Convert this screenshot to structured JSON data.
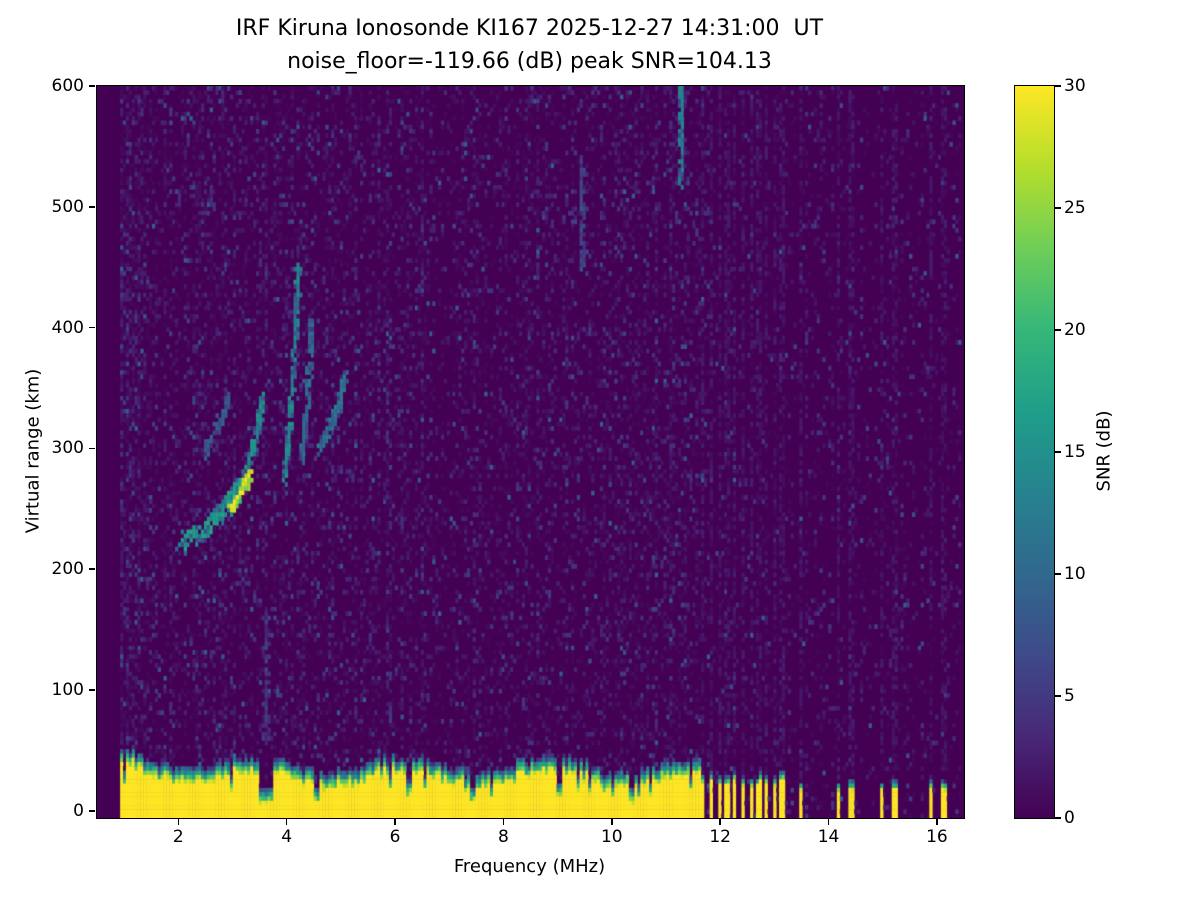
{
  "figure": {
    "station": "KI167",
    "timestamp_ut": "2025-12-27 14:31:00",
    "noise_floor_db": -119.66,
    "peak_snr_db": 104.13
  },
  "chart_data": {
    "type": "heatmap",
    "title": "IRF Kiruna Ionosonde KI167 2025-12-27 14:31:00  UT",
    "subtitle": "noise_floor=-119.66 (dB) peak SNR=104.13",
    "xlabel": "Frequency (MHz)",
    "ylabel": "Virtual range (km)",
    "colorbar_label": "SNR (dB)",
    "x_range_mhz": [
      0.5,
      16.5
    ],
    "y_range_km": [
      -6,
      600
    ],
    "value_range_db": [
      0,
      30
    ],
    "x_ticks": [
      2,
      4,
      6,
      8,
      10,
      12,
      14,
      16
    ],
    "y_ticks": [
      0,
      100,
      200,
      300,
      400,
      500,
      600
    ],
    "colorbar_ticks": [
      0,
      5,
      10,
      15,
      20,
      25,
      30
    ],
    "colormap": "viridis",
    "colormap_stops": [
      "#440154",
      "#482878",
      "#3e4a89",
      "#31688e",
      "#26828e",
      "#1f9e89",
      "#35b779",
      "#6ece58",
      "#b5de2b",
      "#fde725"
    ],
    "grid": false,
    "features": {
      "data_freq_range_mhz": [
        0.95,
        16.42
      ],
      "ground_clutter": {
        "freq_start_mhz": 0.95,
        "freq_end_mhz": 11.62,
        "top_km_base": 26,
        "notches_mhz": [
          3.62,
          4.55,
          6.28,
          7.42,
          9.05,
          10.35
        ]
      },
      "rfi_comb": {
        "dense_start_mhz": 11.66,
        "dense_end_mhz": 13.18,
        "spacing_mhz": 0.145,
        "sparse_stripes_mhz": [
          13.48,
          14.17,
          14.42,
          14.97,
          15.22,
          15.88,
          16.12
        ]
      },
      "echo_traces": [
        {
          "name": "f-trace-lower",
          "points": [
            [
              2.05,
              220
            ],
            [
              2.3,
              227
            ],
            [
              2.55,
              235
            ],
            [
              2.75,
              245
            ],
            [
              2.95,
              256
            ],
            [
              3.1,
              266
            ],
            [
              3.25,
              278
            ]
          ],
          "intensity": 15,
          "spread": 8
        },
        {
          "name": "f-trace-bright-core",
          "points": [
            [
              2.95,
              248
            ],
            [
              3.1,
              258
            ],
            [
              3.22,
              268
            ],
            [
              3.32,
              278
            ]
          ],
          "intensity": 26,
          "spread": 5
        },
        {
          "name": "f-trace-upper-cusp",
          "points": [
            [
              3.3,
              288
            ],
            [
              3.42,
              305
            ],
            [
              3.5,
              325
            ],
            [
              3.55,
              345
            ]
          ],
          "intensity": 14,
          "spread": 6
        },
        {
          "name": "second-hop-streak-a",
          "points": [
            [
              3.95,
              272
            ],
            [
              4.02,
              300
            ],
            [
              4.08,
              330
            ],
            [
              4.12,
              362
            ],
            [
              4.16,
              395
            ],
            [
              4.2,
              428
            ],
            [
              4.22,
              450
            ]
          ],
          "intensity": 13,
          "spread": 5
        },
        {
          "name": "second-hop-streak-b",
          "points": [
            [
              4.3,
              292
            ],
            [
              4.35,
              318
            ],
            [
              4.4,
              348
            ],
            [
              4.44,
              378
            ],
            [
              4.47,
              405
            ]
          ],
          "intensity": 10,
          "spread": 5
        },
        {
          "name": "third-trace",
          "points": [
            [
              4.62,
              300
            ],
            [
              4.78,
              316
            ],
            [
              4.92,
              332
            ],
            [
              5.02,
              348
            ],
            [
              5.08,
              360
            ]
          ],
          "intensity": 11,
          "spread": 6
        },
        {
          "name": "faint-inner-arc",
          "points": [
            [
              2.5,
              298
            ],
            [
              2.66,
              312
            ],
            [
              2.82,
              326
            ],
            [
              2.95,
              340
            ]
          ],
          "intensity": 8,
          "spread": 6
        },
        {
          "name": "low-vertical-streak",
          "points": [
            [
              3.62,
              60
            ],
            [
              3.62,
              110
            ],
            [
              3.62,
              165
            ]
          ],
          "intensity": 5,
          "spread": 3
        },
        {
          "name": "rfi-streak-11-3",
          "points": [
            [
              11.28,
              520
            ],
            [
              11.28,
              555
            ],
            [
              11.28,
              585
            ],
            [
              11.28,
              600
            ]
          ],
          "intensity": 12,
          "spread": 3
        },
        {
          "name": "faint-streak-9-5",
          "points": [
            [
              9.45,
              450
            ],
            [
              9.45,
              490
            ],
            [
              9.45,
              535
            ]
          ],
          "intensity": 6,
          "spread": 3
        }
      ]
    }
  }
}
